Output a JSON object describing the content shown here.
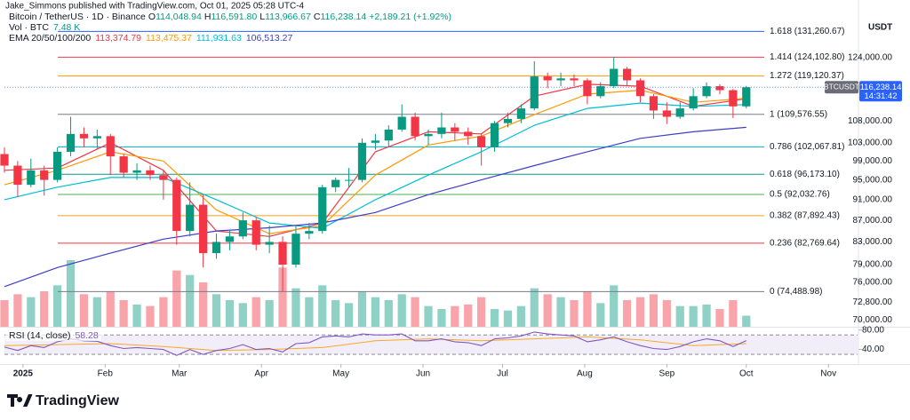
{
  "publisher": "Jake_Simmons published with TradingView.com, Oct 01, 2025 05:28 UTC-4",
  "legend": {
    "symbol": "Bitcoin / TetherUS · 1D · Binance",
    "ohlc": [
      {
        "key": "O",
        "value": "114,048.94"
      },
      {
        "key": "H",
        "value": "116,591.80"
      },
      {
        "key": "L",
        "value": "113,966.67"
      },
      {
        "key": "C",
        "value": "116,238.14"
      }
    ],
    "change": "+2,189.21 (+1.92%)",
    "volume_label": "Vol · BTC",
    "volume_value": "7.48 K",
    "ema_label": "EMA 20/50/100/200",
    "ema_values": [
      "113,374.79",
      "113,475.37",
      "111,931.63",
      "106,513.27"
    ],
    "rsi_label": "RSI (14, close)",
    "rsi_value": "58.28"
  },
  "brand": "TradingView",
  "chart_data": {
    "type": "candlestick",
    "log_scale": true,
    "currency": "USDT",
    "ticker_tag": "BTCUSDT",
    "price_tag": "116,238.14",
    "countdown": "14:31:42",
    "last_price": 116238.14,
    "up_color": "#089981",
    "down_color": "#f23645",
    "xlim": [
      0,
      322
    ],
    "xticks": [
      {
        "value": 7,
        "label": "2025"
      },
      {
        "value": 38,
        "label": "Feb"
      },
      {
        "value": 66,
        "label": "Mar"
      },
      {
        "value": 97,
        "label": "Apr"
      },
      {
        "value": 127,
        "label": "May"
      },
      {
        "value": 158,
        "label": "Jun"
      },
      {
        "value": 188,
        "label": "Jul"
      },
      {
        "value": 219,
        "label": "Aug"
      },
      {
        "value": 250,
        "label": "Sep"
      },
      {
        "value": 280,
        "label": "Oct"
      },
      {
        "value": 311,
        "label": "Nov"
      }
    ],
    "ylim": [
      69000,
      138400
    ],
    "yticks": [
      {
        "value": 124000,
        "label": "124,000.00"
      },
      {
        "value": 108000,
        "label": "108,000.00"
      },
      {
        "value": 103000,
        "label": "103,000.00"
      },
      {
        "value": 99000,
        "label": "99,000.00"
      },
      {
        "value": 95000,
        "label": "95,000.00"
      },
      {
        "value": 91000,
        "label": "91,000.00"
      },
      {
        "value": 87000,
        "label": "87,000.00"
      },
      {
        "value": 83000,
        "label": "83,000.00"
      },
      {
        "value": 79000,
        "label": "79,000.00"
      },
      {
        "value": 76000,
        "label": "76,000.00"
      },
      {
        "value": 72800,
        "label": "72,800.00"
      },
      {
        "value": 70000,
        "label": "70,000.00"
      }
    ],
    "x": [
      0,
      5,
      10,
      15,
      20,
      25,
      30,
      35,
      40,
      45,
      50,
      55,
      60,
      65,
      70,
      75,
      80,
      85,
      90,
      95,
      100,
      105,
      110,
      115,
      120,
      125,
      130,
      135,
      140,
      145,
      150,
      155,
      160,
      165,
      170,
      175,
      180,
      185,
      190,
      195,
      200,
      205,
      210,
      215,
      220,
      225,
      230,
      235,
      240,
      245,
      250,
      255,
      260,
      265,
      270,
      275,
      280
    ],
    "ohlc": [
      [
        100500,
        102000,
        96500,
        98000
      ],
      [
        98000,
        99000,
        91500,
        94000
      ],
      [
        94000,
        99500,
        93500,
        97000
      ],
      [
        97000,
        98000,
        91800,
        95000
      ],
      [
        95000,
        102000,
        94500,
        101000
      ],
      [
        101000,
        109000,
        100000,
        105000
      ],
      [
        105000,
        106500,
        102000,
        104000
      ],
      [
        104000,
        106000,
        101500,
        104500
      ],
      [
        104500,
        105000,
        96000,
        100000
      ],
      [
        100000,
        100500,
        95500,
        96500
      ],
      [
        96500,
        98500,
        95000,
        97000
      ],
      [
        97000,
        98000,
        95000,
        96000
      ],
      [
        96000,
        97000,
        91000,
        95000
      ],
      [
        95000,
        95500,
        82500,
        85000
      ],
      [
        85000,
        94500,
        84000,
        90000
      ],
      [
        90000,
        92000,
        78500,
        81000
      ],
      [
        81000,
        84500,
        80000,
        83000
      ],
      [
        83000,
        85000,
        81500,
        84000
      ],
      [
        84000,
        88500,
        83500,
        87000
      ],
      [
        87000,
        87500,
        81500,
        82500
      ],
      [
        82500,
        86000,
        81000,
        83000
      ],
      [
        83000,
        84000,
        74500,
        79000
      ],
      [
        79000,
        86000,
        78500,
        84500
      ],
      [
        84500,
        86500,
        83500,
        85000
      ],
      [
        85000,
        94000,
        84500,
        93500
      ],
      [
        93500,
        95500,
        92500,
        95000
      ],
      [
        95000,
        97500,
        93500,
        95000
      ],
      [
        95000,
        104000,
        94500,
        103000
      ],
      [
        103000,
        105000,
        101500,
        103500
      ],
      [
        103500,
        107000,
        102000,
        106000
      ],
      [
        106000,
        112000,
        105500,
        109000
      ],
      [
        109000,
        110000,
        103500,
        104500
      ],
      [
        104500,
        106000,
        102500,
        105000
      ],
      [
        105000,
        110000,
        104000,
        106500
      ],
      [
        106500,
        107500,
        103500,
        105500
      ],
      [
        105500,
        106500,
        102500,
        104500
      ],
      [
        104500,
        105000,
        98000,
        102000
      ],
      [
        102000,
        108000,
        101000,
        107500
      ],
      [
        107500,
        110000,
        106500,
        108500
      ],
      [
        108500,
        112000,
        107500,
        111000
      ],
      [
        111000,
        123000,
        110500,
        119000
      ],
      [
        119000,
        120000,
        116000,
        118000
      ],
      [
        118000,
        120000,
        116500,
        118500
      ],
      [
        118500,
        119500,
        116500,
        118000
      ],
      [
        118000,
        118500,
        112000,
        114000
      ],
      [
        114000,
        117500,
        113500,
        116500
      ],
      [
        116500,
        124100,
        116000,
        121000
      ],
      [
        121000,
        121500,
        116500,
        118000
      ],
      [
        118000,
        118500,
        112500,
        114000
      ],
      [
        114000,
        114500,
        108500,
        110500
      ],
      [
        110500,
        112500,
        107300,
        109000
      ],
      [
        109000,
        112500,
        108500,
        111000
      ],
      [
        111000,
        116000,
        110500,
        114000
      ],
      [
        114000,
        117500,
        113500,
        116500
      ],
      [
        116500,
        117000,
        114500,
        115500
      ],
      [
        115500,
        115800,
        108700,
        111500
      ],
      [
        111500,
        116591.8,
        111000,
        116238.14
      ]
    ],
    "series": [
      {
        "color": "#f23645",
        "x": [
          0,
          20,
          40,
          60,
          80,
          100,
          120,
          140,
          160,
          180,
          200,
          220,
          240,
          260,
          280
        ],
        "values": [
          97000,
          97500,
          103000,
          97000,
          85000,
          84000,
          86500,
          101000,
          105500,
          105000,
          114000,
          117000,
          116500,
          111500,
          113374.79
        ]
      },
      {
        "color": "#ff9800",
        "x": [
          0,
          20,
          40,
          60,
          80,
          100,
          120,
          140,
          160,
          180,
          200,
          220,
          240,
          260,
          280
        ],
        "values": [
          94000,
          97000,
          101000,
          99000,
          89000,
          84500,
          86000,
          96000,
          102500,
          104500,
          109500,
          114500,
          115500,
          112500,
          113475.37
        ]
      },
      {
        "color": "#00bcd4",
        "x": [
          0,
          20,
          40,
          60,
          80,
          100,
          120,
          140,
          160,
          180,
          200,
          220,
          240,
          260,
          280
        ],
        "values": [
          91000,
          93500,
          95500,
          95500,
          91000,
          86500,
          85500,
          91000,
          96000,
          101000,
          107000,
          111000,
          112300,
          111500,
          111931.63
        ]
      },
      {
        "color": "#3d3dc8",
        "x": [
          0,
          20,
          40,
          60,
          80,
          100,
          120,
          140,
          160,
          180,
          200,
          220,
          240,
          260,
          280
        ],
        "values": [
          75300,
          78500,
          81000,
          83500,
          85000,
          85600,
          86500,
          88500,
          92000,
          95000,
          98000,
          101000,
          104000,
          105500,
          106513.27
        ]
      }
    ],
    "fib_levels": [
      {
        "label": "1.618 (131,260.67)",
        "value": 131260.67,
        "color": "#2962ff"
      },
      {
        "label": "1.414 (124,102.80)",
        "value": 124102.8,
        "color": "#f23645"
      },
      {
        "label": "1.272 (119,120.37)",
        "value": 119120.37,
        "color": "#ff9800"
      },
      {
        "label": "1 (109,576.55)",
        "value": 109576.55,
        "color": "#787b86"
      },
      {
        "label": "0.786 (102,067.81)",
        "value": 102067.81,
        "color": "#00bcd4"
      },
      {
        "label": "0.618 (96,173.10)",
        "value": 96173.1,
        "color": "#089981"
      },
      {
        "label": "0.5 (92,032.76)",
        "value": 92032.76,
        "color": "#4caf50"
      },
      {
        "label": "0.382 (87,892.43)",
        "value": 87892.43,
        "color": "#f0a020"
      },
      {
        "label": "0.236 (82,769.64)",
        "value": 82769.64,
        "color": "#f23645"
      },
      {
        "label": "0 (74,488.98)",
        "value": 74488.98,
        "color": "#787b86"
      }
    ],
    "volume": {
      "ylim": [
        0,
        60
      ],
      "values": [
        18,
        22,
        20,
        24,
        28,
        45,
        22,
        20,
        24,
        18,
        15,
        14,
        20,
        38,
        35,
        30,
        22,
        18,
        16,
        20,
        18,
        40,
        26,
        20,
        28,
        18,
        16,
        24,
        20,
        18,
        22,
        20,
        14,
        12,
        14,
        15,
        20,
        12,
        11,
        14,
        26,
        22,
        20,
        18,
        24,
        16,
        28,
        18,
        20,
        22,
        18,
        14,
        14,
        15,
        12,
        18,
        7.48
      ]
    },
    "rsi": {
      "color": "#7e57c2",
      "ylim": [
        10,
        85
      ],
      "yticks": [
        {
          "value": 80,
          "label": "80.00"
        },
        {
          "value": 40,
          "label": "40.00"
        }
      ],
      "band": [
        30,
        70
      ],
      "values": [
        45,
        38,
        48,
        44,
        56,
        62,
        58,
        57,
        48,
        42,
        44,
        42,
        40,
        28,
        40,
        30,
        38,
        42,
        50,
        40,
        42,
        35,
        52,
        54,
        66,
        68,
        66,
        72,
        70,
        70,
        72,
        58,
        58,
        62,
        56,
        54,
        48,
        62,
        64,
        68,
        76,
        72,
        70,
        68,
        56,
        60,
        66,
        56,
        48,
        42,
        40,
        46,
        56,
        62,
        58,
        46,
        58.28
      ],
      "ma": {
        "color": "#f9a825",
        "x": [
          0,
          20,
          40,
          60,
          80,
          100,
          120,
          140,
          160,
          180,
          200,
          220,
          240,
          260,
          280
        ],
        "values": [
          48,
          50,
          52,
          46,
          38,
          40,
          44,
          58,
          62,
          58,
          62,
          66,
          60,
          48,
          52
        ]
      }
    }
  }
}
